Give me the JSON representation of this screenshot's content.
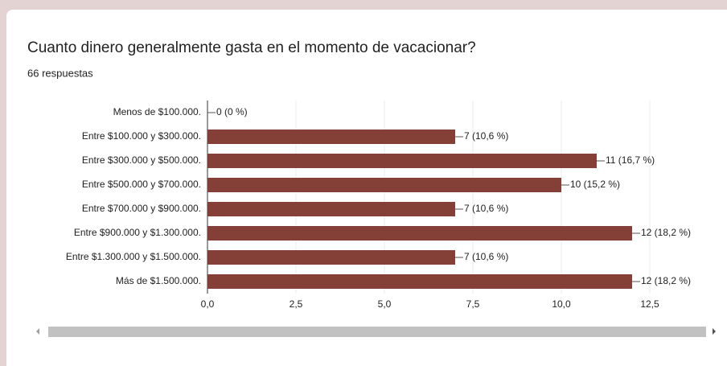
{
  "chart_data": {
    "type": "bar",
    "title": "Cuanto dinero generalmente gasta en el momento de vacacionar?",
    "subtitle": "66 respuestas",
    "categories": [
      "Menos de $100.000.",
      "Entre $100.000 y $300.000.",
      "Entre $300.000 y $500.000.",
      "Entre $500.000 y $700.000.",
      "Entre $700.000 y $900.000.",
      "Entre $900.000 y $1.300.000.",
      "Entre $1.300.000 y $1.500.000.",
      "Más de $1.500.000."
    ],
    "values": [
      0,
      7,
      11,
      10,
      7,
      12,
      7,
      12
    ],
    "value_labels": [
      "0 (0 %)",
      "7 (10,6 %)",
      "11 (16,7 %)",
      "10 (15,2 %)",
      "7 (10,6 %)",
      "12 (18,2 %)",
      "7 (10,6 %)",
      "12 (18,2 %)"
    ],
    "color": "#843f37",
    "xlim": [
      0,
      12.5
    ],
    "xticks": [
      {
        "value": 0,
        "label": "0,0"
      },
      {
        "value": 2.5,
        "label": "2,5"
      },
      {
        "value": 5,
        "label": "5,0"
      },
      {
        "value": 7.5,
        "label": "7,5"
      },
      {
        "value": 10,
        "label": "10,0"
      },
      {
        "value": 12.5,
        "label": "12,5"
      }
    ],
    "grid": true
  }
}
